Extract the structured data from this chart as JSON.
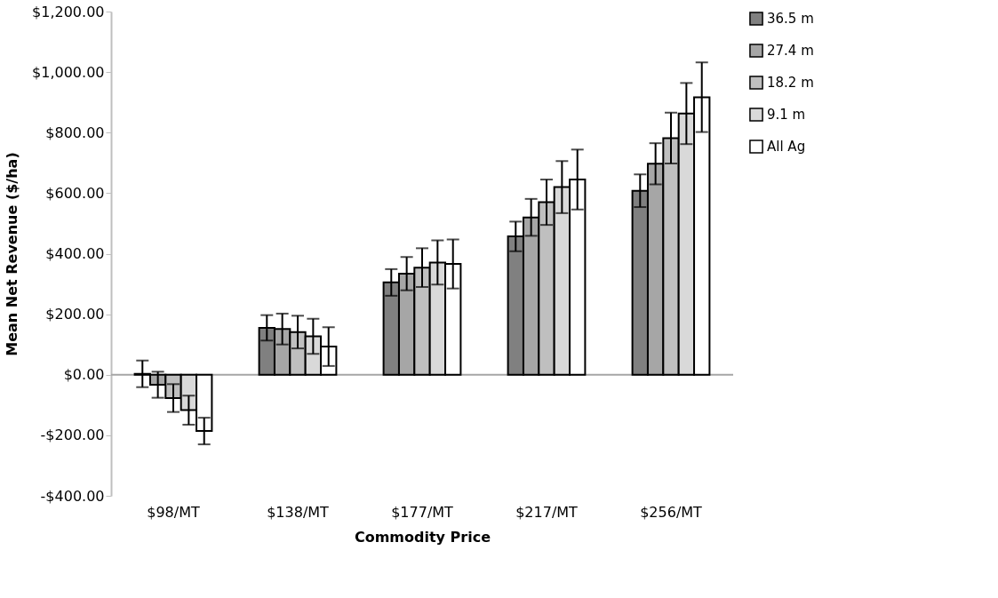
{
  "chart_data": {
    "type": "bar",
    "xlabel": "Commodity Price",
    "ylabel": "Mean Net Revenue ($/ha)",
    "categories": [
      "$98/MT",
      "$138/MT",
      "$177/MT",
      "$217/MT",
      "$256/MT"
    ],
    "series": [
      {
        "name": "36.5 m",
        "color": "#808080",
        "values": [
          3,
          155,
          305,
          457,
          608
        ],
        "errors": [
          44,
          42,
          44,
          49,
          54
        ]
      },
      {
        "name": "27.4 m",
        "color": "#a6a6a6",
        "values": [
          -33,
          151,
          334,
          520,
          697
        ],
        "errors": [
          43,
          51,
          55,
          61,
          68
        ]
      },
      {
        "name": "18.2 m",
        "color": "#bfbfbf",
        "values": [
          -77,
          141,
          354,
          570,
          782
        ],
        "errors": [
          46,
          54,
          64,
          75,
          84
        ]
      },
      {
        "name": "9.1 m",
        "color": "#d9d9d9",
        "values": [
          -117,
          127,
          371,
          620,
          863
        ],
        "errors": [
          48,
          58,
          73,
          86,
          101
        ]
      },
      {
        "name": "All Ag",
        "color": "#ffffff",
        "values": [
          -186,
          93,
          366,
          645,
          917
        ],
        "errors": [
          44,
          64,
          81,
          99,
          115
        ]
      }
    ],
    "ylim": [
      -400,
      1200
    ],
    "yticks": [
      {
        "value": -400,
        "label": "-$400.00"
      },
      {
        "value": -200,
        "label": "-$200.00"
      },
      {
        "value": 0,
        "label": "$0.00"
      },
      {
        "value": 200,
        "label": "$200.00"
      },
      {
        "value": 400,
        "label": "$400.00"
      },
      {
        "value": 600,
        "label": "$600.00"
      },
      {
        "value": 800,
        "label": "$800.00"
      },
      {
        "value": 1000,
        "label": "$1,000.00"
      },
      {
        "value": 1200,
        "label": "$1,200.00"
      }
    ],
    "ref_lines": [
      {
        "axis": "y",
        "value": 0,
        "color": "#a6a6a6"
      }
    ],
    "grid": false,
    "legend": "right"
  }
}
